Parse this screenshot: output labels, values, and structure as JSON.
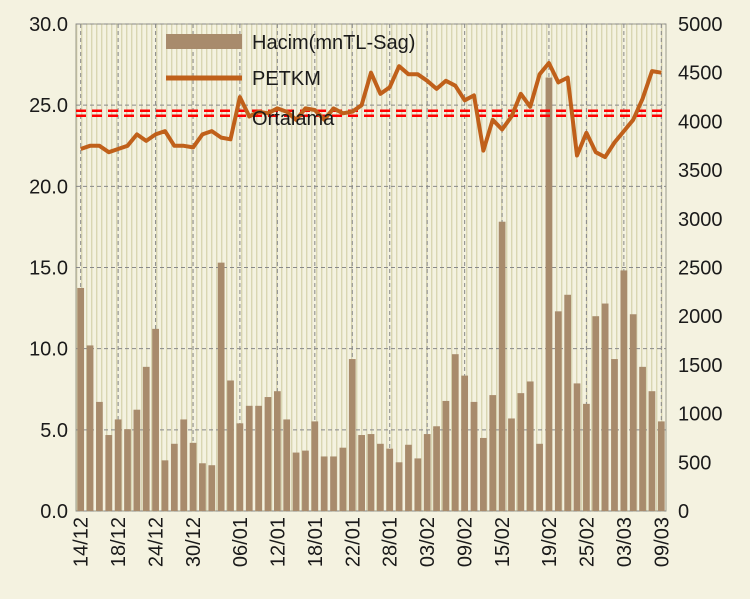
{
  "chart_data": {
    "type": "bar",
    "title": "",
    "xlabel": "",
    "ylabel": "",
    "ylim": [
      0,
      30
    ],
    "y2lim": [
      0,
      5000
    ],
    "yticks": [
      "0.0",
      "5.0",
      "10.0",
      "15.0",
      "20.0",
      "25.0",
      "30.0"
    ],
    "y2ticks": [
      "0",
      "500",
      "1000",
      "1500",
      "2000",
      "2500",
      "3000",
      "3500",
      "4000",
      "4500",
      "5000"
    ],
    "x_tick_labels": [
      "14/12",
      "18/12",
      "24/12",
      "30/12",
      "06/01",
      "12/01",
      "18/01",
      "22/01",
      "28/01",
      "03/02",
      "09/02",
      "15/02",
      "19/02",
      "25/02",
      "03/03",
      "09/03"
    ],
    "legend": {
      "placement": "top-center",
      "entries": [
        "Hacim(mnTL-Sag)",
        "PETKM",
        "Ortalama"
      ]
    },
    "grid": true,
    "colors": {
      "bars": "#a88b6c",
      "line": "#c0601a",
      "average": "#ff0000",
      "background": "#f4f2e0",
      "grid": "#888888"
    },
    "series": [
      {
        "name": "Hacim(mnTL-Sag)",
        "type": "bar",
        "axis": "right",
        "values": [
          2290,
          1700,
          1120,
          780,
          940,
          840,
          1040,
          1480,
          1870,
          520,
          690,
          940,
          700,
          490,
          470,
          2550,
          1340,
          900,
          1080,
          1080,
          1170,
          1230,
          940,
          600,
          620,
          920,
          560,
          560,
          650,
          1560,
          780,
          790,
          690,
          640,
          500,
          680,
          540,
          790,
          870,
          1130,
          1610,
          1390,
          1120,
          750,
          1190,
          2970,
          950,
          1210,
          1330,
          690,
          4450,
          2050,
          2220,
          1310,
          1100,
          2000,
          2130,
          1560,
          2470,
          2020,
          1480,
          1230,
          920
        ]
      },
      {
        "name": "PETKM",
        "type": "line",
        "axis": "left",
        "values": [
          22.3,
          22.5,
          22.5,
          22.1,
          22.3,
          22.5,
          23.2,
          22.8,
          23.2,
          23.4,
          22.5,
          22.5,
          22.4,
          23.2,
          23.4,
          23.0,
          22.9,
          25.5,
          24.3,
          24.6,
          24.5,
          24.8,
          24.6,
          24.1,
          24.8,
          24.7,
          24.1,
          24.8,
          24.5,
          24.6,
          25.0,
          27.0,
          25.7,
          26.1,
          27.4,
          26.9,
          26.9,
          26.5,
          26.0,
          26.5,
          26.2,
          25.3,
          25.6,
          22.2,
          24.1,
          23.5,
          24.3,
          25.7,
          24.9,
          26.9,
          27.6,
          26.4,
          26.7,
          21.9,
          23.3,
          22.1,
          21.8,
          22.7,
          23.4,
          24.1,
          25.4,
          27.1,
          27.0
        ]
      },
      {
        "name": "Ortalama",
        "type": "line",
        "axis": "left",
        "values": [
          24.5
        ]
      }
    ]
  }
}
